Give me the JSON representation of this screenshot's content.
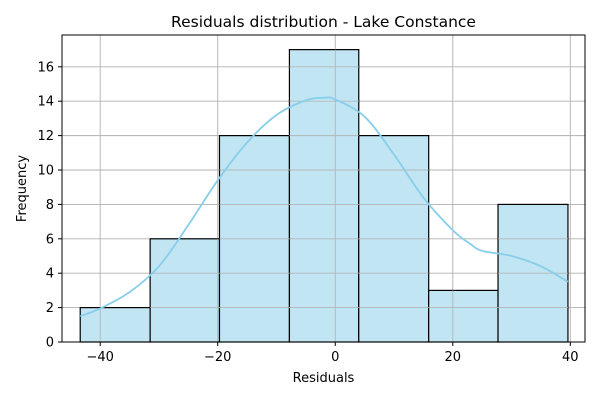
{
  "chart_data": {
    "type": "histogram",
    "title": "Residuals distribution - Lake Constance",
    "xlabel": "Residuals",
    "ylabel": "Frequency",
    "xlim": [
      -46.5,
      42.5
    ],
    "ylim": [
      0,
      17.85
    ],
    "xticks": [
      -40,
      -20,
      0,
      20,
      40
    ],
    "xtick_labels": [
      "−40",
      "−20",
      "0",
      "20",
      "40"
    ],
    "yticks": [
      0,
      2,
      4,
      6,
      8,
      10,
      12,
      14,
      16
    ],
    "ytick_labels": [
      "0",
      "2",
      "4",
      "6",
      "8",
      "10",
      "12",
      "14",
      "16"
    ],
    "grid": true,
    "bins": [
      {
        "x0": -43.4,
        "x1": -31.5,
        "count": 2
      },
      {
        "x0": -31.5,
        "x1": -19.7,
        "count": 6
      },
      {
        "x0": -19.7,
        "x1": -7.8,
        "count": 12
      },
      {
        "x0": -7.8,
        "x1": 4.0,
        "count": 17
      },
      {
        "x0": 4.0,
        "x1": 15.9,
        "count": 12
      },
      {
        "x0": 15.9,
        "x1": 27.7,
        "count": 3
      },
      {
        "x0": 27.7,
        "x1": 39.6,
        "count": 8
      }
    ],
    "kde": {
      "x": [
        -43.4,
        -40,
        -35,
        -30,
        -25,
        -20,
        -15,
        -10,
        -5,
        -2,
        0,
        5,
        10,
        15,
        20,
        23,
        25,
        30,
        35,
        39.6
      ],
      "y": [
        1.5,
        1.95,
        2.9,
        4.4,
        6.8,
        9.4,
        11.6,
        13.2,
        14.05,
        14.2,
        14.1,
        13.1,
        10.9,
        8.4,
        6.5,
        5.7,
        5.3,
        5.0,
        4.4,
        3.5
      ]
    },
    "colors": {
      "bar_fill": "#c2e5f3",
      "bar_edge": "#000000",
      "kde_line": "#87ceeb",
      "grid": "#b0b0b0",
      "axis": "#000000"
    }
  }
}
